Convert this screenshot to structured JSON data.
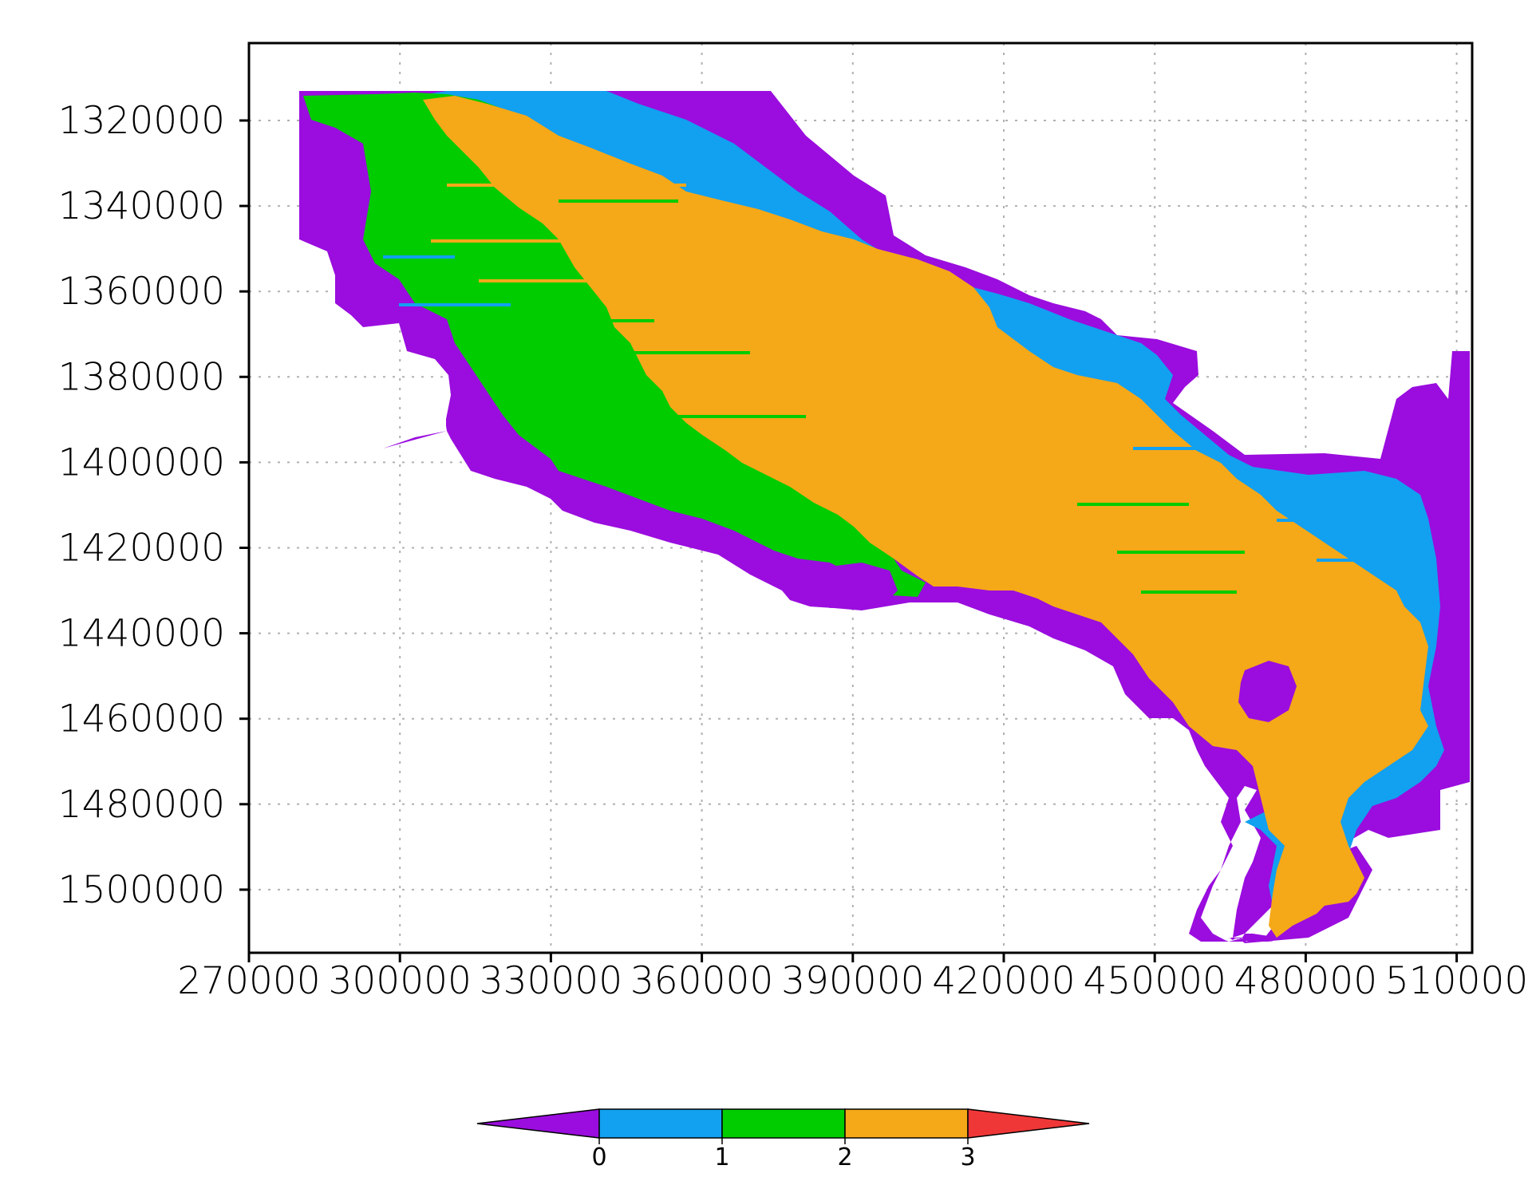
{
  "map": {
    "x_ticks": [
      "270000",
      "300000",
      "330000",
      "360000",
      "390000",
      "420000",
      "450000",
      "480000",
      "510000"
    ],
    "y_ticks": [
      "1320000",
      "1340000",
      "1360000",
      "1380000",
      "1400000",
      "1420000",
      "1440000",
      "1460000",
      "1480000",
      "1500000"
    ],
    "x_range": [
      270000,
      513000
    ],
    "y_range": [
      1302000,
      1515000
    ],
    "grid": true,
    "colors": {
      "class_0": "#9a0dde",
      "class_1": "#12a0f0",
      "class_2": "#00cc00",
      "class_3": "#f5a818",
      "over": "#ef3737"
    }
  },
  "colorbar": {
    "labels": [
      "0",
      "1",
      "2",
      "3"
    ],
    "colors": [
      "#9a0dde",
      "#12a0f0",
      "#00cc00",
      "#f5a818",
      "#ef3737"
    ],
    "extend": "both"
  }
}
